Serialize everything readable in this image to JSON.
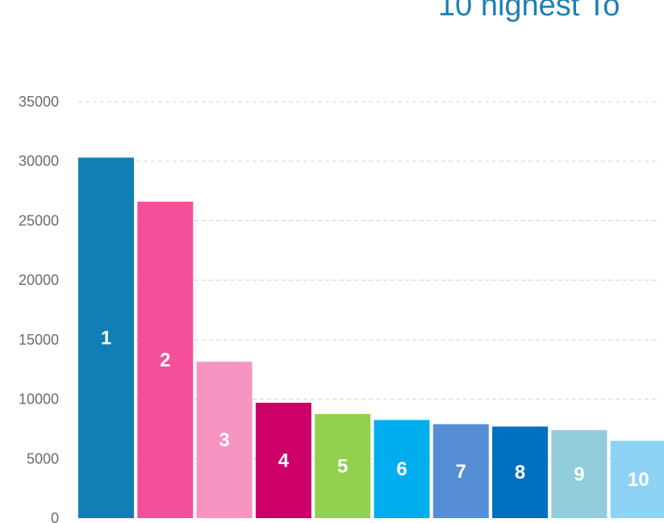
{
  "chart_data": {
    "type": "bar",
    "title": "10 highest To",
    "xlabel": "",
    "ylabel": "",
    "ylim": [
      0,
      35000
    ],
    "yticks": [
      0,
      5000,
      10000,
      15000,
      20000,
      25000,
      30000,
      35000
    ],
    "grid": true,
    "categories": [
      "1",
      "2",
      "3",
      "4",
      "5",
      "6",
      "7",
      "8",
      "9",
      "10"
    ],
    "values": [
      30300,
      26600,
      13150,
      9700,
      8750,
      8250,
      7900,
      7700,
      7400,
      6500
    ],
    "colors": [
      "#0f7fb5",
      "#f44f98",
      "#f795c2",
      "#cc0066",
      "#92d050",
      "#00aeef",
      "#558ed5",
      "#0070c0",
      "#92cddc",
      "#8ed3f5"
    ]
  }
}
